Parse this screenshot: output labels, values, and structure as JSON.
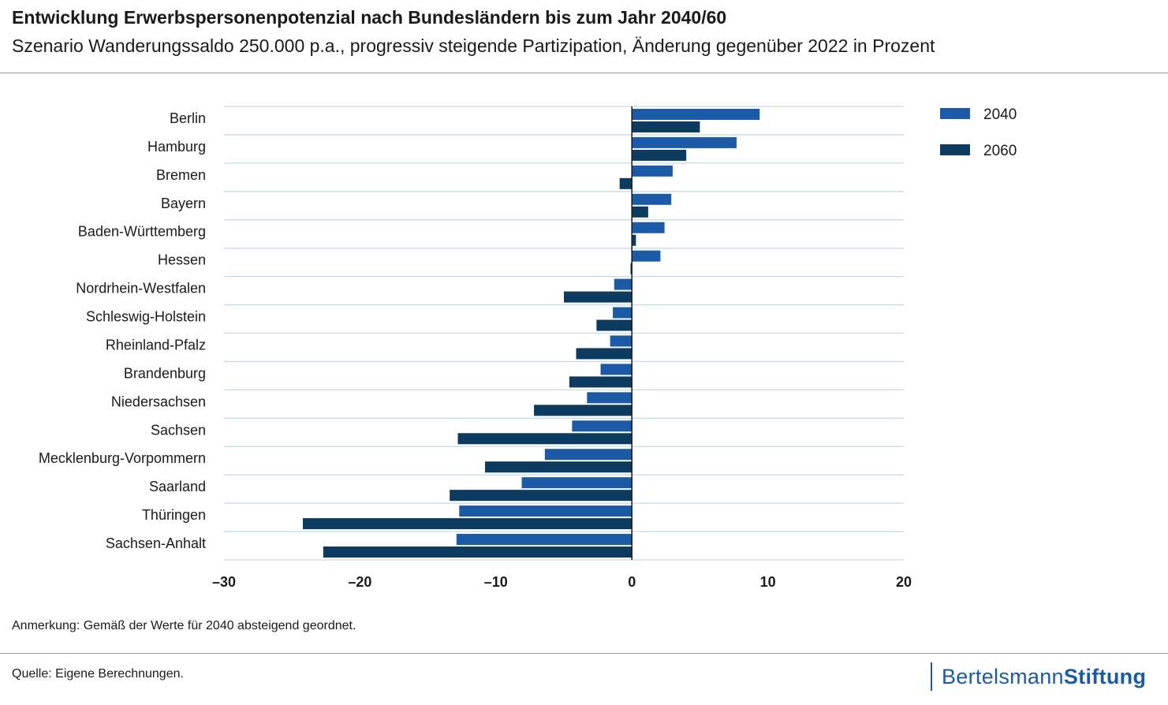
{
  "header": {
    "title": "Entwicklung Erwerbspersonenpotenzial nach Bundesländern bis zum Jahr 2040/60",
    "subtitle": "Szenario Wanderungssaldo 250.000 p.a., progressiv steigende Partizipation, Änderung gegenüber 2022 in Prozent"
  },
  "footer": {
    "note": "Anmerkung: Gemäß der Werte für 2040 absteigend geordnet.",
    "source": "Quelle: Eigene Berechnungen.",
    "logo_light": "Bertelsmann",
    "logo_bold": "Stiftung"
  },
  "colors": {
    "series_2040": "#1a5aa6",
    "series_2060": "#0d3a5f",
    "grid": "#c9dbe8"
  },
  "chart_data": {
    "type": "bar",
    "orientation": "horizontal",
    "title": "Entwicklung Erwerbspersonenpotenzial nach Bundesländern bis zum Jahr 2040/60",
    "subtitle": "Szenario Wanderungssaldo 250.000 p.a., progressiv steigende Partizipation, Änderung gegenüber 2022 in Prozent",
    "xlabel": "",
    "ylabel": "",
    "xlim": [
      -30,
      20
    ],
    "xticks": [
      -30,
      -20,
      -10,
      0,
      10,
      20
    ],
    "xtick_labels": [
      "–30",
      "–20",
      "–10",
      "0",
      "10",
      "20"
    ],
    "legend_position": "top-right",
    "categories": [
      "Berlin",
      "Hamburg",
      "Bremen",
      "Bayern",
      "Baden-Württemberg",
      "Hessen",
      "Nordrhein-Westfalen",
      "Schleswig-Holstein",
      "Rheinland-Pfalz",
      "Brandenburg",
      "Niedersachsen",
      "Sachsen",
      "Mecklenburg-Vorpommern",
      "Saarland",
      "Thüringen",
      "Sachsen-Anhalt"
    ],
    "series": [
      {
        "name": "2040",
        "values": [
          9.4,
          7.7,
          3.0,
          2.9,
          2.4,
          2.1,
          -1.3,
          -1.4,
          -1.6,
          -2.3,
          -3.3,
          -4.4,
          -6.4,
          -8.1,
          -12.7,
          -12.9
        ]
      },
      {
        "name": "2060",
        "values": [
          5.0,
          4.0,
          -0.9,
          1.2,
          0.3,
          -0.1,
          -5.0,
          -2.6,
          -4.1,
          -4.6,
          -7.2,
          -12.8,
          -10.8,
          -13.4,
          -24.2,
          -22.7
        ]
      }
    ]
  }
}
